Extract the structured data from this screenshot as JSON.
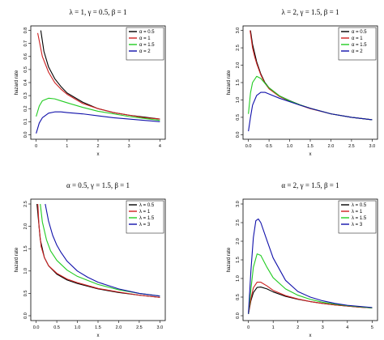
{
  "figure": {
    "colors": {
      "black": "#000000",
      "red": "#cc1f1f",
      "green": "#22cc22",
      "blue": "#1010aa"
    }
  },
  "chart_data": [
    {
      "type": "line",
      "title": "λ = 1, γ = 0.5, β = 1",
      "xlabel": "x",
      "ylabel": "hazard rate",
      "xlim": [
        0,
        4
      ],
      "ylim": [
        0,
        0.8
      ],
      "xticks": [
        "0",
        "1",
        "2",
        "3",
        "4"
      ],
      "yticks": [
        "0.0",
        "0.1",
        "0.2",
        "0.3",
        "0.4",
        "0.5",
        "0.6",
        "0.7",
        "0.8"
      ],
      "legend_position": "top-right",
      "series": [
        {
          "name": "α = 0.5",
          "color": "#000000",
          "x": [
            0.15,
            0.25,
            0.4,
            0.6,
            0.8,
            1,
            1.5,
            2,
            2.5,
            3,
            3.5,
            4
          ],
          "y": [
            0.8,
            0.64,
            0.52,
            0.43,
            0.37,
            0.32,
            0.25,
            0.2,
            0.17,
            0.15,
            0.135,
            0.12
          ]
        },
        {
          "name": "α = 1",
          "color": "#cc1f1f",
          "x": [
            0.05,
            0.2,
            0.4,
            0.6,
            0.8,
            1,
            1.5,
            2,
            2.5,
            3,
            3.5,
            4
          ],
          "y": [
            0.78,
            0.6,
            0.48,
            0.4,
            0.35,
            0.31,
            0.24,
            0.2,
            0.17,
            0.15,
            0.13,
            0.12
          ]
        },
        {
          "name": "α = 1.5",
          "color": "#22cc22",
          "x": [
            0,
            0.1,
            0.2,
            0.4,
            0.6,
            0.8,
            1,
            1.5,
            2,
            2.5,
            3,
            3.5,
            4
          ],
          "y": [
            0.14,
            0.22,
            0.26,
            0.28,
            0.275,
            0.26,
            0.245,
            0.21,
            0.18,
            0.16,
            0.14,
            0.125,
            0.11
          ]
        },
        {
          "name": "α = 2",
          "color": "#1010aa",
          "x": [
            0,
            0.1,
            0.2,
            0.4,
            0.6,
            0.8,
            1,
            1.5,
            2,
            2.5,
            3,
            3.5,
            4
          ],
          "y": [
            0.01,
            0.09,
            0.13,
            0.165,
            0.175,
            0.175,
            0.17,
            0.16,
            0.145,
            0.13,
            0.12,
            0.11,
            0.1
          ]
        }
      ]
    },
    {
      "type": "line",
      "title": "λ = 2, γ = 1.5, β = 1",
      "xlabel": "x",
      "ylabel": "hazard rate",
      "xlim": [
        0,
        3
      ],
      "ylim": [
        0,
        3.0
      ],
      "xticks": [
        "0.0",
        "0.5",
        "1.0",
        "1.5",
        "2.0",
        "2.5",
        "3.0"
      ],
      "yticks": [
        "0.0",
        "0.5",
        "1.0",
        "1.5",
        "2.0",
        "2.5",
        "3.0"
      ],
      "legend_position": "top-right",
      "series": [
        {
          "name": "α = 0.5",
          "color": "#000000",
          "x": [
            0.05,
            0.1,
            0.15,
            0.2,
            0.3,
            0.4,
            0.5,
            0.75,
            1,
            1.25,
            1.5,
            2,
            2.5,
            3
          ],
          "y": [
            3.0,
            2.6,
            2.35,
            2.1,
            1.75,
            1.5,
            1.35,
            1.12,
            0.98,
            0.86,
            0.76,
            0.6,
            0.5,
            0.43
          ]
        },
        {
          "name": "α = 1",
          "color": "#cc1f1f",
          "x": [
            0.04,
            0.1,
            0.15,
            0.2,
            0.3,
            0.4,
            0.5,
            0.75,
            1,
            1.25,
            1.5,
            2,
            2.5,
            3
          ],
          "y": [
            3.0,
            2.5,
            2.25,
            2.05,
            1.72,
            1.48,
            1.32,
            1.1,
            0.96,
            0.85,
            0.75,
            0.6,
            0.5,
            0.43
          ]
        },
        {
          "name": "α = 1.5",
          "color": "#22cc22",
          "x": [
            0,
            0.05,
            0.1,
            0.2,
            0.3,
            0.4,
            0.5,
            0.75,
            1,
            1.25,
            1.5,
            2,
            2.5,
            3
          ],
          "y": [
            0.6,
            1.2,
            1.5,
            1.68,
            1.62,
            1.48,
            1.35,
            1.12,
            0.97,
            0.86,
            0.76,
            0.6,
            0.5,
            0.43
          ]
        },
        {
          "name": "α = 2",
          "color": "#1010aa",
          "x": [
            0,
            0.05,
            0.1,
            0.2,
            0.3,
            0.4,
            0.5,
            0.75,
            1,
            1.25,
            1.5,
            2,
            2.5,
            3
          ],
          "y": [
            0.1,
            0.5,
            0.85,
            1.13,
            1.22,
            1.22,
            1.17,
            1.05,
            0.95,
            0.85,
            0.76,
            0.6,
            0.5,
            0.43
          ]
        }
      ]
    },
    {
      "type": "line",
      "title": "α = 0.5, γ = 1.5, β = 1",
      "xlabel": "x",
      "ylabel": "hazard rate",
      "xlim": [
        0,
        3
      ],
      "ylim": [
        0,
        2.5
      ],
      "xticks": [
        "0.0",
        "0.5",
        "1.0",
        "1.5",
        "2.0",
        "2.5",
        "3.0"
      ],
      "yticks": [
        "0.0",
        "0.5",
        "1.0",
        "1.5",
        "2.0",
        "2.5"
      ],
      "legend_position": "top-right",
      "series": [
        {
          "name": "λ = 0.5",
          "color": "#000000",
          "x": [
            0.02,
            0.05,
            0.1,
            0.2,
            0.3,
            0.5,
            0.75,
            1,
            1.5,
            2,
            2.5,
            3
          ],
          "y": [
            2.5,
            2.2,
            1.7,
            1.3,
            1.12,
            0.93,
            0.8,
            0.72,
            0.6,
            0.52,
            0.46,
            0.41
          ]
        },
        {
          "name": "λ = 1",
          "color": "#cc1f1f",
          "x": [
            0.04,
            0.07,
            0.12,
            0.2,
            0.3,
            0.5,
            0.75,
            1,
            1.5,
            2,
            2.5,
            3
          ],
          "y": [
            2.5,
            2.0,
            1.55,
            1.3,
            1.12,
            0.95,
            0.82,
            0.74,
            0.61,
            0.53,
            0.46,
            0.41
          ]
        },
        {
          "name": "λ = 1.5",
          "color": "#22cc22",
          "x": [
            0.1,
            0.15,
            0.25,
            0.35,
            0.5,
            0.75,
            1,
            1.5,
            2,
            2.5,
            3
          ],
          "y": [
            2.5,
            2.1,
            1.7,
            1.45,
            1.24,
            1.02,
            0.88,
            0.7,
            0.58,
            0.5,
            0.44
          ]
        },
        {
          "name": "λ = 3",
          "color": "#1010aa",
          "x": [
            0.22,
            0.3,
            0.4,
            0.5,
            0.6,
            0.75,
            1,
            1.25,
            1.5,
            2,
            2.5,
            3
          ],
          "y": [
            2.5,
            2.12,
            1.8,
            1.58,
            1.42,
            1.22,
            1.0,
            0.86,
            0.75,
            0.6,
            0.5,
            0.44
          ]
        }
      ]
    },
    {
      "type": "line",
      "title": "α = 2, γ = 1.5, β = 1",
      "xlabel": "x",
      "ylabel": "hazard rate",
      "xlim": [
        0,
        5
      ],
      "ylim": [
        0,
        3.0
      ],
      "xticks": [
        "0",
        "1",
        "2",
        "3",
        "4",
        "5"
      ],
      "yticks": [
        "0.0",
        "0.5",
        "1.0",
        "1.5",
        "2.0",
        "2.5",
        "3.0"
      ],
      "legend_position": "top-right",
      "series": [
        {
          "name": "λ = 0.5",
          "color": "#000000",
          "x": [
            0,
            0.1,
            0.2,
            0.35,
            0.5,
            0.75,
            1,
            1.5,
            2,
            2.5,
            3,
            3.5,
            4,
            4.5,
            5
          ],
          "y": [
            0.05,
            0.4,
            0.62,
            0.76,
            0.77,
            0.72,
            0.64,
            0.52,
            0.44,
            0.38,
            0.33,
            0.29,
            0.26,
            0.23,
            0.21
          ]
        },
        {
          "name": "λ = 1",
          "color": "#cc1f1f",
          "x": [
            0,
            0.1,
            0.2,
            0.35,
            0.5,
            0.75,
            1,
            1.5,
            2,
            2.5,
            3,
            3.5,
            4,
            4.5,
            5
          ],
          "y": [
            0.05,
            0.45,
            0.75,
            0.9,
            0.9,
            0.8,
            0.68,
            0.54,
            0.45,
            0.38,
            0.33,
            0.29,
            0.26,
            0.23,
            0.21
          ]
        },
        {
          "name": "λ = 1.5",
          "color": "#22cc22",
          "x": [
            0,
            0.1,
            0.2,
            0.35,
            0.5,
            0.75,
            1,
            1.5,
            2,
            2.5,
            3,
            3.5,
            4,
            4.5,
            5
          ],
          "y": [
            0.05,
            0.7,
            1.3,
            1.66,
            1.62,
            1.3,
            1.02,
            0.72,
            0.55,
            0.44,
            0.36,
            0.31,
            0.27,
            0.24,
            0.21
          ]
        },
        {
          "name": "λ = 3",
          "color": "#1010aa",
          "x": [
            0,
            0.1,
            0.2,
            0.3,
            0.4,
            0.5,
            0.75,
            1,
            1.5,
            2,
            2.5,
            3,
            3.5,
            4,
            4.5,
            5
          ],
          "y": [
            0.05,
            1.2,
            2.1,
            2.55,
            2.6,
            2.5,
            2.02,
            1.55,
            0.95,
            0.65,
            0.5,
            0.4,
            0.33,
            0.28,
            0.25,
            0.22
          ]
        }
      ]
    }
  ]
}
